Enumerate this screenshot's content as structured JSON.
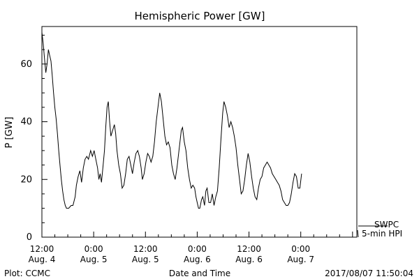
{
  "chart_data": {
    "type": "line",
    "title": "Hemispheric Power [GW]",
    "xlabel": "Date and Time",
    "ylabel": "P [GW]",
    "ylim": [
      0,
      73
    ],
    "xlim_hours": [
      0,
      73
    ],
    "y_ticks": [
      0,
      20,
      40,
      60
    ],
    "x_ticks": [
      {
        "h": 0,
        "top": "12:00",
        "bottom": "Aug. 4"
      },
      {
        "h": 12,
        "top": "0:00",
        "bottom": "Aug. 5"
      },
      {
        "h": 24,
        "top": "12:00",
        "bottom": "Aug. 5"
      },
      {
        "h": 36,
        "top": "0:00",
        "bottom": "Aug. 6"
      },
      {
        "h": 48,
        "top": "12:00",
        "bottom": "Aug. 6"
      },
      {
        "h": 60,
        "top": "0:00",
        "bottom": "Aug. 7"
      }
    ],
    "grid": false,
    "legend": [
      "SWPC",
      "5-min HPI"
    ],
    "series": [
      {
        "name": "5-min HPI",
        "points": [
          [
            0,
            71
          ],
          [
            0.3,
            67
          ],
          [
            0.6,
            62
          ],
          [
            0.9,
            57
          ],
          [
            1.2,
            60
          ],
          [
            1.5,
            65
          ],
          [
            1.8,
            63
          ],
          [
            2.1,
            61
          ],
          [
            2.4,
            56
          ],
          [
            2.7,
            50
          ],
          [
            3,
            45
          ],
          [
            3.3,
            41
          ],
          [
            3.6,
            36
          ],
          [
            3.9,
            30
          ],
          [
            4.2,
            25
          ],
          [
            4.5,
            20
          ],
          [
            4.8,
            16
          ],
          [
            5.1,
            13
          ],
          [
            5.4,
            11
          ],
          [
            5.7,
            10
          ],
          [
            6.2,
            10
          ],
          [
            6.8,
            11
          ],
          [
            7.2,
            11
          ],
          [
            7.7,
            14
          ],
          [
            8,
            18
          ],
          [
            8.4,
            21
          ],
          [
            8.8,
            23
          ],
          [
            9.2,
            19
          ],
          [
            9.6,
            24
          ],
          [
            10,
            27
          ],
          [
            10.4,
            28
          ],
          [
            10.8,
            27
          ],
          [
            11.3,
            30
          ],
          [
            11.7,
            28
          ],
          [
            12.1,
            30
          ],
          [
            12.5,
            27
          ],
          [
            12.9,
            24
          ],
          [
            13.2,
            20
          ],
          [
            13.5,
            22
          ],
          [
            13.8,
            19
          ],
          [
            14.2,
            25
          ],
          [
            14.5,
            30
          ],
          [
            14.8,
            38
          ],
          [
            15.1,
            45
          ],
          [
            15.4,
            47
          ],
          [
            15.7,
            40
          ],
          [
            16,
            35
          ],
          [
            16.4,
            37
          ],
          [
            16.8,
            39
          ],
          [
            17.1,
            36
          ],
          [
            17.4,
            30
          ],
          [
            17.8,
            25
          ],
          [
            18.2,
            22
          ],
          [
            18.6,
            17
          ],
          [
            19,
            18
          ],
          [
            19.4,
            22
          ],
          [
            19.8,
            27
          ],
          [
            20.2,
            28
          ],
          [
            20.6,
            25
          ],
          [
            21,
            22
          ],
          [
            21.4,
            26
          ],
          [
            21.8,
            29
          ],
          [
            22.2,
            30
          ],
          [
            22.6,
            28
          ],
          [
            23,
            24
          ],
          [
            23.3,
            20
          ],
          [
            23.7,
            22
          ],
          [
            24.1,
            26
          ],
          [
            24.5,
            29
          ],
          [
            24.9,
            28
          ],
          [
            25.3,
            26
          ],
          [
            25.7,
            28
          ],
          [
            26.1,
            33
          ],
          [
            26.5,
            40
          ],
          [
            26.9,
            45
          ],
          [
            27.3,
            50
          ],
          [
            27.7,
            47
          ],
          [
            28.1,
            41
          ],
          [
            28.5,
            35
          ],
          [
            28.9,
            32
          ],
          [
            29.3,
            33
          ],
          [
            29.7,
            31
          ],
          [
            30.1,
            25
          ],
          [
            30.5,
            22
          ],
          [
            30.9,
            20
          ],
          [
            31.3,
            24
          ],
          [
            31.7,
            29
          ],
          [
            32,
            33
          ],
          [
            32.3,
            37
          ],
          [
            32.6,
            38
          ],
          [
            33,
            33
          ],
          [
            33.4,
            30
          ],
          [
            33.8,
            24
          ],
          [
            34.2,
            20
          ],
          [
            34.6,
            17
          ],
          [
            35,
            18
          ],
          [
            35.4,
            17
          ],
          [
            35.7,
            14
          ],
          [
            36,
            12
          ],
          [
            36.3,
            10
          ],
          [
            36.6,
            10
          ],
          [
            37,
            13
          ],
          [
            37.3,
            14
          ],
          [
            37.7,
            11
          ],
          [
            38,
            16
          ],
          [
            38.3,
            17
          ],
          [
            38.7,
            12
          ],
          [
            39.1,
            12
          ],
          [
            39.5,
            15
          ],
          [
            39.9,
            11
          ],
          [
            40.3,
            14
          ],
          [
            40.7,
            16
          ],
          [
            41.1,
            24
          ],
          [
            41.5,
            34
          ],
          [
            41.9,
            43
          ],
          [
            42.2,
            47
          ],
          [
            42.6,
            45
          ],
          [
            43,
            42
          ],
          [
            43.4,
            38
          ],
          [
            43.8,
            40
          ],
          [
            44.2,
            38
          ],
          [
            44.6,
            35
          ],
          [
            45,
            31
          ],
          [
            45.4,
            25
          ],
          [
            45.8,
            20
          ],
          [
            46.2,
            15
          ],
          [
            46.6,
            16
          ],
          [
            47,
            20
          ],
          [
            47.4,
            25
          ],
          [
            47.8,
            29
          ],
          [
            48.2,
            26
          ],
          [
            48.6,
            21
          ],
          [
            49,
            17
          ],
          [
            49.4,
            14
          ],
          [
            49.8,
            13
          ],
          [
            50.2,
            17
          ],
          [
            50.6,
            20
          ],
          [
            51,
            21
          ],
          [
            51.4,
            24
          ],
          [
            51.8,
            25
          ],
          [
            52.2,
            26
          ],
          [
            52.6,
            25
          ],
          [
            53,
            24
          ],
          [
            53.4,
            22
          ],
          [
            53.8,
            21
          ],
          [
            54.2,
            20
          ],
          [
            54.6,
            19
          ],
          [
            55,
            18
          ],
          [
            55.4,
            16
          ],
          [
            55.8,
            13
          ],
          [
            56.2,
            12
          ],
          [
            56.6,
            11
          ],
          [
            57,
            11
          ],
          [
            57.4,
            12
          ],
          [
            57.8,
            15
          ],
          [
            58.2,
            19
          ],
          [
            58.6,
            22
          ],
          [
            59,
            21
          ],
          [
            59.4,
            17
          ],
          [
            59.8,
            17
          ],
          [
            60.2,
            22
          ]
        ]
      }
    ]
  },
  "footer": {
    "left": "Plot: CCMC",
    "right": "2017/08/07 11:50:04"
  }
}
